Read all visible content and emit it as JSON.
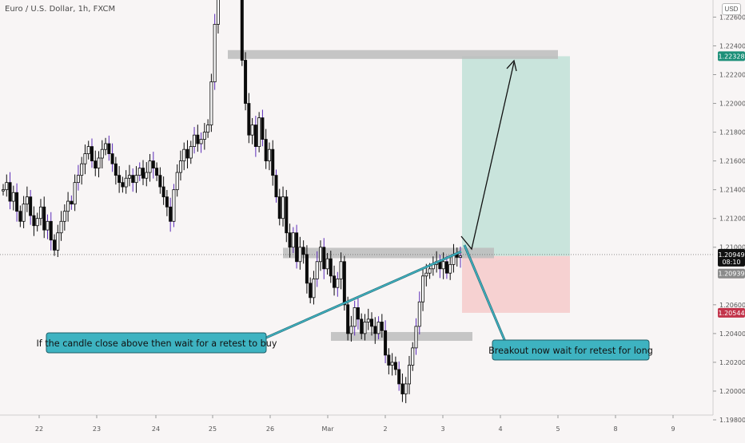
{
  "chart_data": {
    "type": "candlestick",
    "title": "Euro / U.S. Dollar, 1h, FXCM",
    "currency": "USD",
    "y_axis": {
      "ylim": [
        1.1975,
        1.2268
      ],
      "ticks": [
        "1.22600",
        "1.22400",
        "1.22200",
        "1.22000",
        "1.21800",
        "1.21600",
        "1.21400",
        "1.21200",
        "1.21000",
        "1.20600",
        "1.20400",
        "1.20200",
        "1.20000",
        "1.19800"
      ]
    },
    "x_axis": {
      "ticks": [
        "22",
        "23",
        "24",
        "25",
        "26",
        "Mar",
        "2",
        "3",
        "4",
        "5",
        "8",
        "9"
      ]
    },
    "price_labels": {
      "target": "1.22328",
      "current": "1.20949",
      "countdown": "08:10",
      "entry": "1.20939",
      "stop": "1.20544"
    },
    "levels": [
      {
        "name": "resistance-top",
        "price": 1.2234
      },
      {
        "name": "breakout-zone",
        "price": 1.2096
      },
      {
        "name": "support-bottom",
        "price": 1.2038
      }
    ],
    "position": {
      "entry": 1.20939,
      "target": 1.22328,
      "stop": 1.20544
    },
    "price_path": [
      1.214,
      1.2145,
      1.2132,
      1.2138,
      1.2125,
      1.2118,
      1.213,
      1.2135,
      1.2122,
      1.2115,
      1.212,
      1.2128,
      1.2112,
      1.2118,
      1.2105,
      1.2098,
      1.211,
      1.2118,
      1.2125,
      1.2132,
      1.213,
      1.2145,
      1.215,
      1.2158,
      1.2165,
      1.217,
      1.216,
      1.2155,
      1.2162,
      1.2168,
      1.2172,
      1.2165,
      1.2158,
      1.215,
      1.2145,
      1.2142,
      1.2148,
      1.215,
      1.2145,
      1.215,
      1.2155,
      1.2148,
      1.2152,
      1.216,
      1.2155,
      1.215,
      1.2142,
      1.2135,
      1.2128,
      1.2118,
      1.214,
      1.2152,
      1.216,
      1.2168,
      1.2162,
      1.217,
      1.2178,
      1.2172,
      1.2175,
      1.218,
      1.2185,
      1.2215,
      1.2255,
      1.2295,
      1.233,
      1.2318,
      1.2325,
      1.2302,
      1.2292,
      1.228,
      1.223,
      1.22,
      1.2178,
      1.2185,
      1.217,
      1.219,
      1.2175,
      1.216,
      1.2168,
      1.215,
      1.2135,
      1.212,
      1.2135,
      1.211,
      1.21,
      1.211,
      1.209,
      1.21,
      1.2095,
      1.2075,
      1.2065,
      1.2078,
      1.209,
      1.21,
      1.2085,
      1.2092,
      1.208,
      1.2072,
      1.2078,
      1.209,
      1.206,
      1.204,
      1.2045,
      1.2058,
      1.205,
      1.204,
      1.2048,
      1.205,
      1.2045,
      1.204,
      1.2048,
      1.2042,
      1.2025,
      1.2018,
      1.202,
      1.2015,
      1.2005,
      1.1998,
      1.2005,
      1.2018,
      1.203,
      1.2045,
      1.2062,
      1.208,
      1.2082,
      1.2085,
      1.2088,
      1.209,
      1.2085,
      1.209,
      1.2082,
      1.2088,
      1.2095,
      1.2093,
      1.2094
    ],
    "annotations": [
      {
        "text": "If the candle close above then wait for a retest to buy"
      },
      {
        "text": "Breakout now wait for retest for long"
      }
    ],
    "colors": {
      "candle": "#0b0b0b",
      "wick_accent": "#5b2bb8",
      "zone": "#bcbcbc",
      "target_fill": "#c9e4dc",
      "stop_fill": "#f6d1d1",
      "callout_fill": "#3eb3c1",
      "target_label": "#1c8f78",
      "current_label": "#111111",
      "entry_label": "#8a8a8a",
      "stop_label": "#c2334a"
    }
  }
}
